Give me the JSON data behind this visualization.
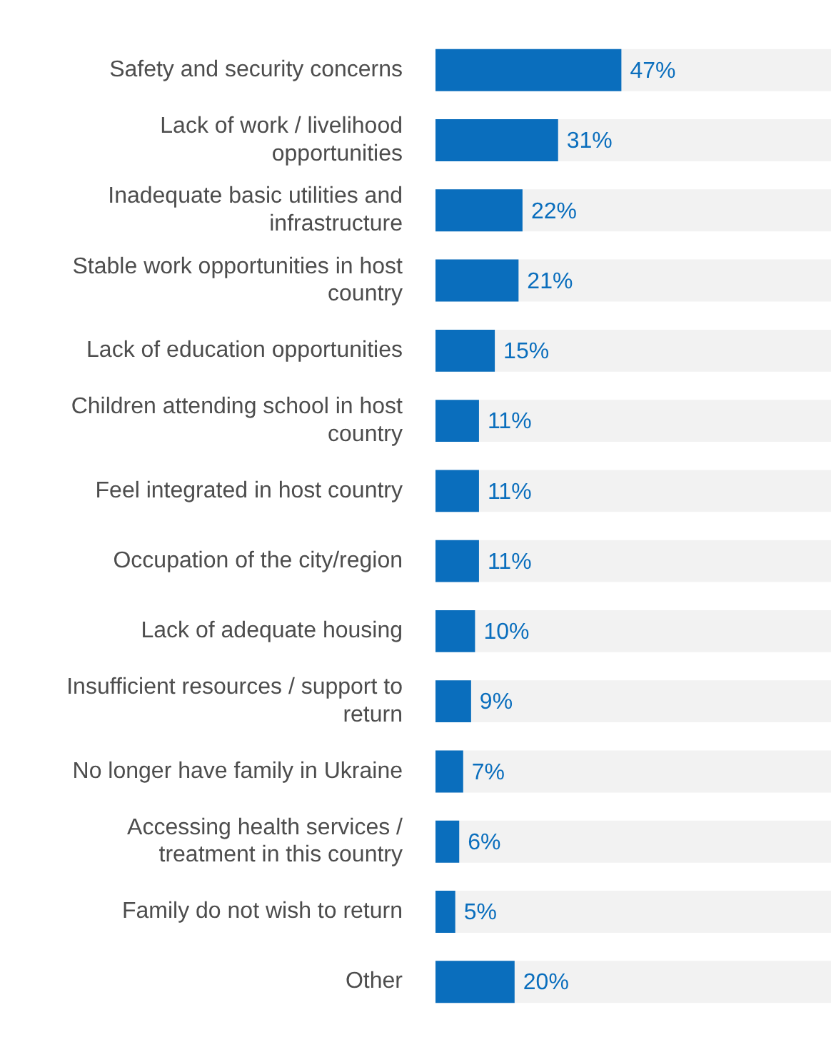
{
  "chart_data": {
    "type": "bar",
    "orientation": "horizontal",
    "categories": [
      "Safety and security concerns",
      "Lack of work / livelihood opportunities",
      "Inadequate basic utilities and infrastructure",
      "Stable work opportunities in host country",
      "Lack of education opportunities",
      "Children attending school in host country",
      "Feel integrated in host country",
      "Occupation of the city/region",
      "Lack of adequate housing",
      "Insufficient resources / support to return",
      "No longer have family in Ukraine",
      "Accessing health services / treatment in this country",
      "Family do not wish to return",
      "Other"
    ],
    "values": [
      47,
      31,
      22,
      21,
      15,
      11,
      11,
      11,
      10,
      9,
      7,
      6,
      5,
      20
    ],
    "value_labels": [
      "47%",
      "31%",
      "22%",
      "21%",
      "15%",
      "11%",
      "11%",
      "11%",
      "10%",
      "9%",
      "7%",
      "6%",
      "5%",
      "20%"
    ],
    "color": "#0a6ebd",
    "xlim": [
      0,
      100
    ],
    "bands": [
      {
        "axis": "x",
        "from": 0,
        "to": 100,
        "color": "#f2f2f2"
      }
    ],
    "tick_labels": "y"
  }
}
